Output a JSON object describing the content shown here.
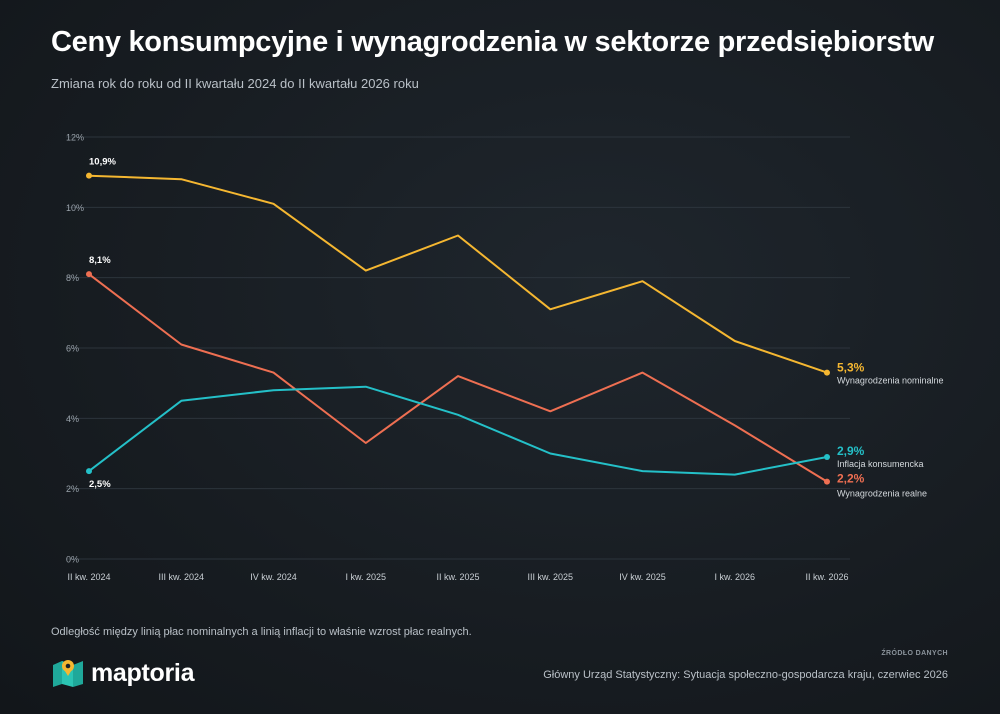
{
  "header": {
    "title": "Ceny konsumpcyjne i wynagrodzenia w sektorze przedsiębiorstw",
    "subtitle": "Zmiana rok do roku od II kwartału 2024 do II kwartału 2026 roku"
  },
  "footer": {
    "note": "Odległość między linią płac nominalnych a linią inflacji to właśnie wzrost płac realnych.",
    "logo_text": "maptoria",
    "source_label": "ŹRÓDŁO DANYCH",
    "source_text": "Główny Urząd Statystyczny: Sytuacja społeczno-gospodarcza kraju, czerwiec 2026"
  },
  "chart_data": {
    "type": "line",
    "title": "Ceny konsumpcyjne i wynagrodzenia w sektorze przedsiębiorstw",
    "subtitle": "Zmiana rok do roku od II kwartału 2024 do II kwartału 2026 roku",
    "categories": [
      "II kw. 2024",
      "III kw. 2024",
      "IV kw. 2024",
      "I kw. 2025",
      "II kw. 2025",
      "III kw. 2025",
      "IV kw. 2025",
      "I kw. 2026",
      "II kw. 2026"
    ],
    "y_ticks": [
      "0%",
      "2%",
      "4%",
      "6%",
      "8%",
      "10%",
      "12%"
    ],
    "ylim": [
      0,
      12
    ],
    "grid": true,
    "series": [
      {
        "name": "Wynagrodzenia nominalne",
        "color": "#f5b731",
        "values": [
          10.9,
          10.8,
          10.1,
          8.2,
          9.2,
          7.1,
          7.9,
          6.2,
          5.3
        ],
        "start_label": "10,9%",
        "end_label": "5,3%"
      },
      {
        "name": "Wynagrodzenia realne",
        "color": "#ee6f52",
        "values": [
          8.1,
          6.1,
          5.3,
          3.3,
          5.2,
          4.2,
          5.3,
          3.8,
          2.2
        ],
        "start_label": "8,1%",
        "end_label": "2,2%"
      },
      {
        "name": "Inflacja konsumencka",
        "color": "#24c0c8",
        "values": [
          2.5,
          4.5,
          4.8,
          4.9,
          4.1,
          3.0,
          2.5,
          2.4,
          2.9
        ],
        "start_label": "2,5%",
        "end_label": "2,9%"
      }
    ]
  }
}
